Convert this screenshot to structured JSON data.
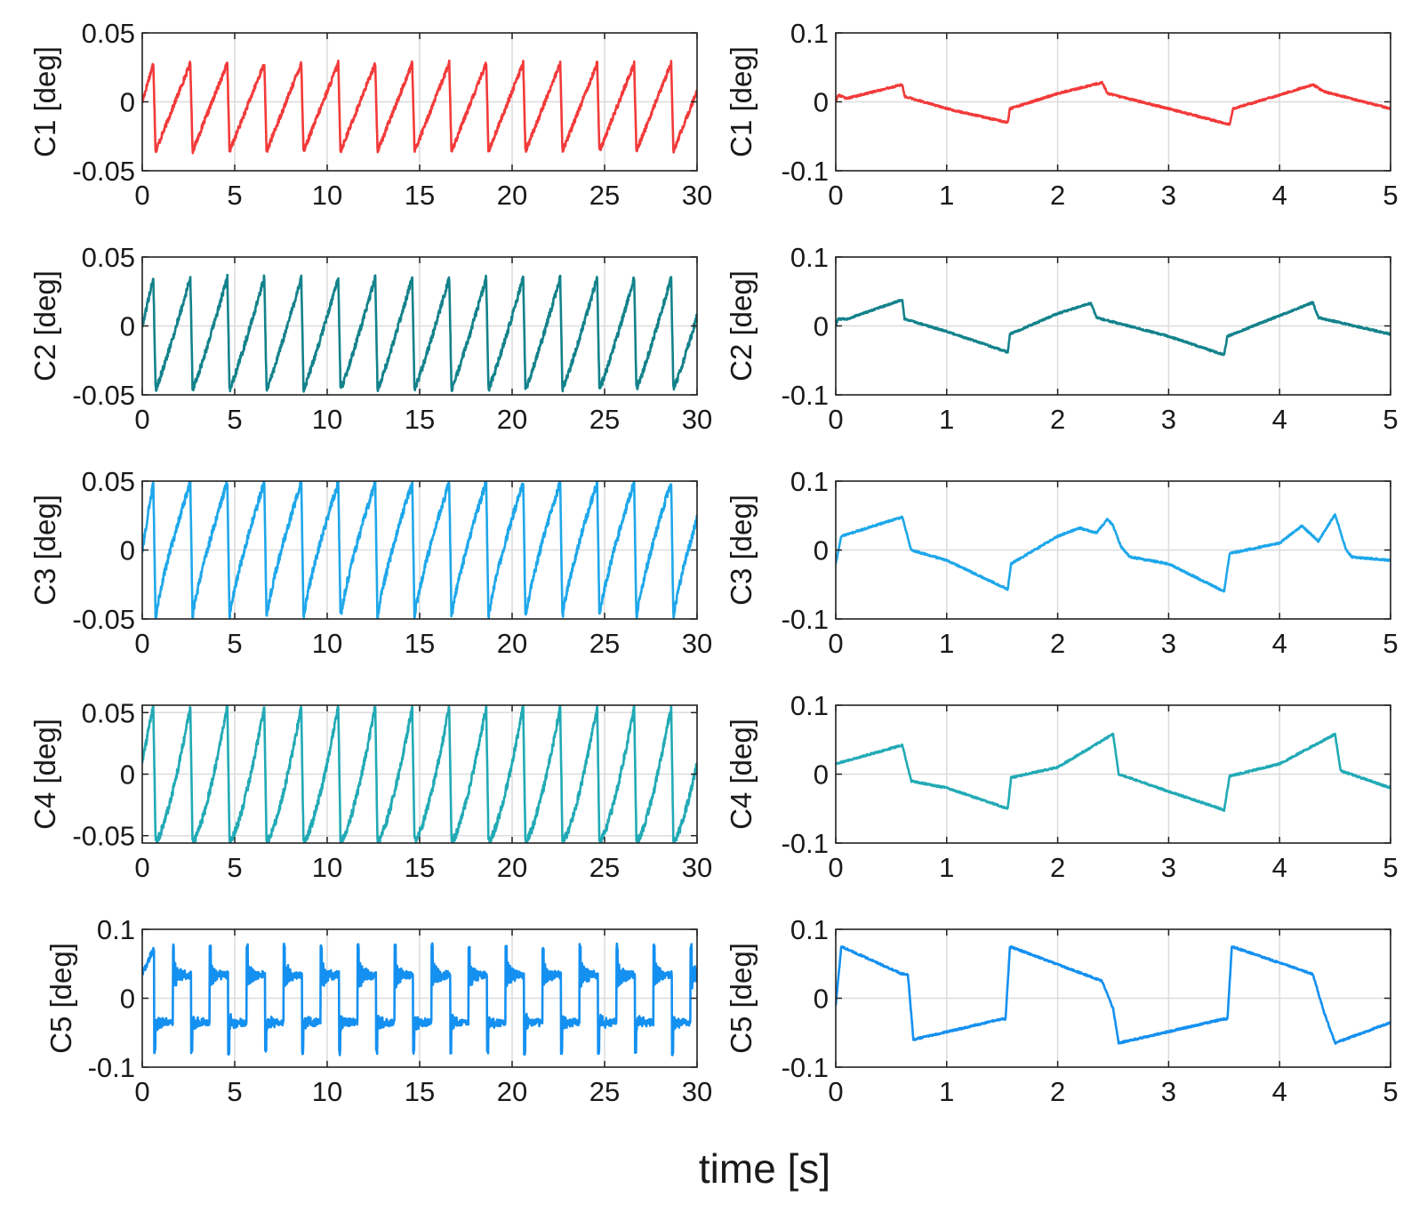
{
  "figure": {
    "xlabel": "time [s]"
  },
  "chart_data": [
    {
      "type": "line",
      "channel": "C1",
      "panel": "long",
      "ylabel": "C1 [deg]",
      "color": "#f23a3a",
      "xlim": [
        0,
        30
      ],
      "xticks": [
        0,
        5,
        10,
        15,
        20,
        25,
        30
      ],
      "xtick_labels": [
        "0",
        "5",
        "10",
        "15",
        "20",
        "25",
        "30"
      ],
      "ylim": [
        -0.05,
        0.05
      ],
      "yticks": [
        -0.05,
        0,
        0.05
      ],
      "ytick_labels": [
        "-0.05",
        "0",
        "0.05"
      ],
      "period": 2,
      "onset": 0.6,
      "peak": 0.028,
      "trough": -0.036,
      "start": 0.0,
      "step": 0.0,
      "decay": 1.0,
      "grid": true
    },
    {
      "type": "line",
      "channel": "C1",
      "panel": "zoom",
      "ylabel": "C1 [deg]",
      "color": "#f23a3a",
      "xlim": [
        0,
        5
      ],
      "xticks": [
        0,
        1,
        2,
        3,
        4,
        5
      ],
      "xtick_labels": [
        "0",
        "1",
        "2",
        "3",
        "4",
        "5"
      ],
      "ylim": [
        -0.1,
        0.1
      ],
      "yticks": [
        -0.1,
        0,
        0.1
      ],
      "ytick_labels": [
        "-0.1",
        "0",
        "0.1"
      ],
      "x": [
        0,
        0.02,
        0.1,
        0.6,
        0.62,
        1.0,
        1.55,
        1.57,
        2.0,
        2.4,
        2.45,
        3.0,
        3.55,
        3.58,
        4.0,
        4.3,
        4.4,
        5.0
      ],
      "y": [
        0,
        0.01,
        0.005,
        0.025,
        0.008,
        -0.01,
        -0.03,
        -0.01,
        0.012,
        0.028,
        0.012,
        -0.01,
        -0.033,
        -0.01,
        0.01,
        0.025,
        0.015,
        -0.01
      ],
      "grid": true
    },
    {
      "type": "line",
      "channel": "C2",
      "panel": "long",
      "ylabel": "C2 [deg]",
      "color": "#13828b",
      "xlim": [
        0,
        30
      ],
      "xticks": [
        0,
        5,
        10,
        15,
        20,
        25,
        30
      ],
      "xtick_labels": [
        "0",
        "5",
        "10",
        "15",
        "20",
        "25",
        "30"
      ],
      "ylim": [
        -0.05,
        0.05
      ],
      "yticks": [
        -0.05,
        0,
        0.05
      ],
      "ytick_labels": [
        "-0.05",
        "0",
        "0.05"
      ],
      "period": 2,
      "onset": 0.6,
      "peak": 0.035,
      "trough": -0.046,
      "start": 0.0,
      "step": 0.0,
      "decay": 1.1,
      "grid": true
    },
    {
      "type": "line",
      "channel": "C2",
      "panel": "zoom",
      "ylabel": "C2 [deg]",
      "color": "#13828b",
      "xlim": [
        0,
        5
      ],
      "xticks": [
        0,
        1,
        2,
        3,
        4,
        5
      ],
      "xtick_labels": [
        "0",
        "1",
        "2",
        "3",
        "4",
        "5"
      ],
      "ylim": [
        -0.1,
        0.1
      ],
      "yticks": [
        -0.1,
        0,
        0.1
      ],
      "ytick_labels": [
        "-0.1",
        "0",
        "0.1"
      ],
      "x": [
        0,
        0.02,
        0.1,
        0.6,
        0.62,
        1.0,
        1.55,
        1.57,
        2.0,
        2.3,
        2.35,
        3.0,
        3.5,
        3.53,
        4.0,
        4.3,
        4.35,
        5.0
      ],
      "y": [
        0,
        0.01,
        0.01,
        0.038,
        0.01,
        -0.008,
        -0.038,
        -0.012,
        0.018,
        0.033,
        0.012,
        -0.015,
        -0.042,
        -0.015,
        0.015,
        0.034,
        0.012,
        -0.012
      ],
      "grid": true
    },
    {
      "type": "line",
      "channel": "C3",
      "panel": "long",
      "ylabel": "C3 [deg]",
      "color": "#1ea7ea",
      "xlim": [
        0,
        30
      ],
      "xticks": [
        0,
        5,
        10,
        15,
        20,
        25,
        30
      ],
      "xtick_labels": [
        "0",
        "5",
        "10",
        "15",
        "20",
        "25",
        "30"
      ],
      "ylim": [
        -0.05,
        0.05
      ],
      "yticks": [
        -0.05,
        0,
        0.05
      ],
      "ytick_labels": [
        "-0.05",
        "0",
        "0.05"
      ],
      "period": 2,
      "onset": 0.6,
      "peak": 0.049,
      "trough": -0.05,
      "start": 0.0,
      "step": 0.0,
      "decay": 0.8,
      "grid": true
    },
    {
      "type": "line",
      "channel": "C3",
      "panel": "zoom",
      "ylabel": "C3 [deg]",
      "color": "#1ea7ea",
      "xlim": [
        0,
        5
      ],
      "xticks": [
        0,
        1,
        2,
        3,
        4,
        5
      ],
      "xtick_labels": [
        "0",
        "1",
        "2",
        "3",
        "4",
        "5"
      ],
      "ylim": [
        -0.1,
        0.1
      ],
      "yticks": [
        -0.1,
        0,
        0.1
      ],
      "ytick_labels": [
        "-0.1",
        "0",
        "0.1"
      ],
      "x": [
        0,
        0.05,
        0.6,
        0.68,
        1.0,
        1.55,
        1.58,
        2.0,
        2.2,
        2.35,
        2.45,
        2.5,
        2.57,
        2.65,
        3.0,
        3.5,
        3.55,
        4.0,
        4.2,
        4.35,
        4.5,
        4.6,
        4.65,
        5.0
      ],
      "y": [
        -0.02,
        0.02,
        0.048,
        0.0,
        -0.015,
        -0.057,
        -0.02,
        0.02,
        0.032,
        0.025,
        0.045,
        0.035,
        0.005,
        -0.01,
        -0.02,
        -0.06,
        -0.005,
        0.01,
        0.035,
        0.013,
        0.052,
        0.0,
        -0.01,
        -0.015
      ],
      "grid": true
    },
    {
      "type": "line",
      "channel": "C4",
      "panel": "long",
      "ylabel": "C4 [deg]",
      "color": "#21aab5",
      "xlim": [
        0,
        30
      ],
      "xticks": [
        0,
        5,
        10,
        15,
        20,
        25,
        30
      ],
      "xtick_labels": [
        "0",
        "5",
        "10",
        "15",
        "20",
        "25",
        "30"
      ],
      "ylim": [
        -0.056,
        0.056
      ],
      "yticks": [
        -0.05,
        0,
        0.05
      ],
      "ytick_labels": [
        "-0.05",
        "0",
        "0.05"
      ],
      "period": 2,
      "onset": 0.6,
      "peak": 0.055,
      "trough": -0.055,
      "start": 0.01,
      "step": 0.0,
      "decay": 1.4,
      "grid": true
    },
    {
      "type": "line",
      "channel": "C4",
      "panel": "zoom",
      "ylabel": "C4 [deg]",
      "color": "#21aab5",
      "xlim": [
        0,
        5
      ],
      "xticks": [
        0,
        1,
        2,
        3,
        4,
        5
      ],
      "xtick_labels": [
        "0",
        "1",
        "2",
        "3",
        "4",
        "5"
      ],
      "ylim": [
        -0.1,
        0.1
      ],
      "yticks": [
        -0.1,
        0,
        0.1
      ],
      "ytick_labels": [
        "-0.1",
        "0",
        "0.1"
      ],
      "x": [
        0,
        0.6,
        0.68,
        1.0,
        1.55,
        1.58,
        2.0,
        2.5,
        2.55,
        3.0,
        3.5,
        3.55,
        4.0,
        4.5,
        4.55,
        5.0
      ],
      "y": [
        0.015,
        0.042,
        -0.01,
        -0.02,
        -0.05,
        -0.005,
        0.01,
        0.058,
        0.0,
        -0.025,
        -0.052,
        -0.003,
        0.015,
        0.058,
        0.005,
        -0.02
      ],
      "grid": true
    },
    {
      "type": "line",
      "channel": "C5",
      "panel": "long",
      "ylabel": "C5 [deg]",
      "color": "#1490f0",
      "xlim": [
        0,
        30
      ],
      "xticks": [
        0,
        5,
        10,
        15,
        20,
        25,
        30
      ],
      "xtick_labels": [
        "0",
        "5",
        "10",
        "15",
        "20",
        "25",
        "30"
      ],
      "ylim": [
        -0.1,
        0.1
      ],
      "yticks": [
        -0.1,
        0,
        0.1
      ],
      "ytick_labels": [
        "-0.1",
        "0",
        "0.1"
      ],
      "period": 2,
      "onset": 0.65,
      "peak": 0.075,
      "trough": -0.078,
      "start": 0.035,
      "step": 1.0,
      "grid": true
    },
    {
      "type": "line",
      "channel": "C5",
      "panel": "zoom",
      "ylabel": "C5 [deg]",
      "color": "#1490f0",
      "xlim": [
        0,
        5
      ],
      "xticks": [
        0,
        1,
        2,
        3,
        4,
        5
      ],
      "xtick_labels": [
        "0",
        "1",
        "2",
        "3",
        "4",
        "5"
      ],
      "ylim": [
        -0.1,
        0.1
      ],
      "yticks": [
        -0.1,
        0,
        0.1
      ],
      "ytick_labels": [
        "-0.1",
        "0",
        "0.1"
      ],
      "x": [
        0,
        0.05,
        0.6,
        0.65,
        0.7,
        1.5,
        1.53,
        1.57,
        2.4,
        2.5,
        2.55,
        3.5,
        3.53,
        3.57,
        4.3,
        4.4,
        4.5,
        5.0
      ],
      "y": [
        -0.01,
        0.075,
        0.035,
        0.035,
        -0.06,
        -0.03,
        -0.03,
        0.075,
        0.025,
        -0.015,
        -0.065,
        -0.03,
        -0.03,
        0.075,
        0.035,
        -0.02,
        -0.065,
        -0.035
      ],
      "grid": true
    }
  ]
}
